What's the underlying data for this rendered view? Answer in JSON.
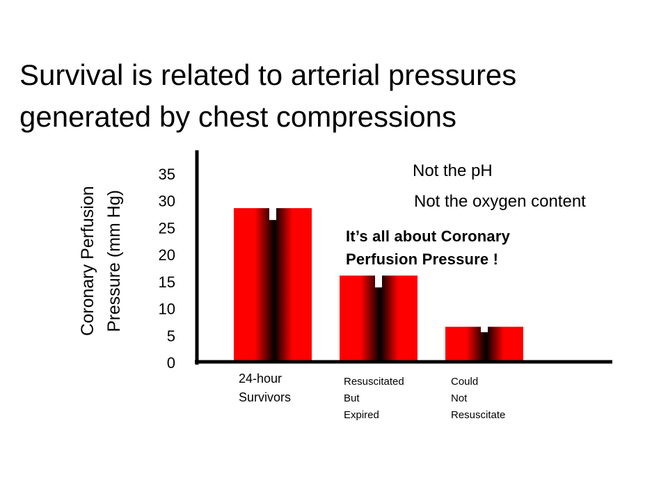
{
  "title": {
    "line1": "Survival is related to arterial pressures",
    "line2": "generated by chest compressions"
  },
  "chart_data": {
    "type": "bar",
    "categories": [
      [
        "24-hour",
        "Survivors"
      ],
      [
        "Resuscitated",
        "But",
        "Expired"
      ],
      [
        "Could",
        "Not",
        "Resuscitate"
      ]
    ],
    "values": [
      28.5,
      16,
      6.5
    ],
    "error_dips": [
      26.3,
      13.8,
      5.5
    ],
    "ylabel": [
      "Coronary Perfusion",
      "Pressure (mm Hg)"
    ],
    "yticks": [
      0,
      5,
      10,
      15,
      20,
      25,
      30,
      35
    ],
    "ylim": [
      0,
      40
    ],
    "grid": false,
    "legend": "none",
    "colors": {
      "bar_outer": "#ff0000",
      "bar_center": "#000000",
      "axis": "#000000"
    }
  },
  "annotations": {
    "note1": "Not the pH",
    "note2": "Not the oxygen content",
    "emphasis_line1": "It’s all about Coronary",
    "emphasis_line2": "Perfusion Pressure !"
  }
}
